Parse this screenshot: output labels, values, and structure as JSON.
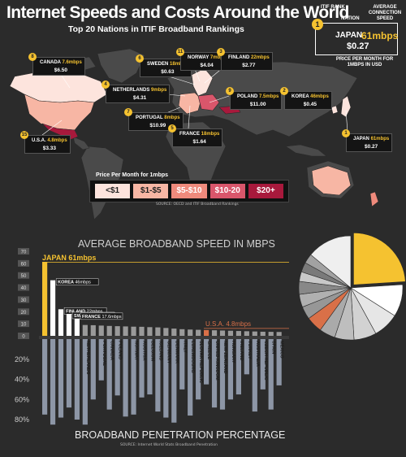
{
  "title": "Internet Speeds and Costs Around the World",
  "subtitle": "Top 20 Nations in ITIF Broadband Rankings",
  "legend_key": {
    "itif_rank_label": "ITIF RANK",
    "nation_label": "NATION",
    "speed_label": "AVERAGE CONNECTION SPEED",
    "price_label": "PRICE PER MONTH FOR 1MBPS IN USD",
    "example_rank": "1",
    "example_nation": "JAPAN",
    "example_speed": "61mbps",
    "example_cost": "$0.27"
  },
  "callouts": [
    {
      "rank": "8",
      "name": "CANADA",
      "speed": "7.6mbps",
      "cost": "$6.50"
    },
    {
      "rank": "6",
      "name": "SWEDEN",
      "speed": "18mbps",
      "cost": "$0.63"
    },
    {
      "rank": "11",
      "name": "NORWAY",
      "speed": "7mbps",
      "cost": "$4.04"
    },
    {
      "rank": "3",
      "name": "FINLAND",
      "speed": "22mbps",
      "cost": "$2.77"
    },
    {
      "rank": "4",
      "name": "NETHERLANDS",
      "speed": "9mbps",
      "cost": "$4.31"
    },
    {
      "rank": "7",
      "name": "PORTUGAL",
      "speed": "8mbps",
      "cost": "$10.99"
    },
    {
      "rank": "9",
      "name": "POLAND",
      "speed": "7.5mbps",
      "cost": "$11.00"
    },
    {
      "rank": "2",
      "name": "KOREA",
      "speed": "46mbps",
      "cost": "$0.45"
    },
    {
      "rank": "5",
      "name": "FRANCE",
      "speed": "18mbps",
      "cost": "$1.64"
    },
    {
      "rank": "15",
      "name": "U.S.A.",
      "speed": "4.8mbps",
      "cost": "$3.33"
    },
    {
      "rank": "1",
      "name": "JAPAN",
      "speed": "61mbps",
      "cost": "$0.27"
    }
  ],
  "cost_legend": {
    "title": "Price Per Month for 1mbps",
    "bins": [
      {
        "label": "<$1",
        "color": "#fde4dd"
      },
      {
        "label": "$1-$5",
        "color": "#f7b6a4"
      },
      {
        "label": "$5-$10",
        "color": "#ef8a7c"
      },
      {
        "label": "$10-20",
        "color": "#d9566b"
      },
      {
        "label": "$20+",
        "color": "#a8193c"
      }
    ],
    "source": "SOURCE: OECD and ITIF Broadband Rankings"
  },
  "speed_section_title": "AVERAGE BROADBAND SPEED IN MBPS",
  "penetration_section_title": "BROADBAND PENETRATION PERCENTAGE",
  "penetration_source": "SOURCE: Internet World Stats Broadband Penetration",
  "chart_data": [
    {
      "type": "bar",
      "title": "AVERAGE BROADBAND SPEED IN MBPS",
      "ylim": [
        0,
        70
      ],
      "yticks": [
        0,
        10,
        20,
        30,
        40,
        50,
        60,
        70
      ],
      "annotations": [
        {
          "label": "JAPAN",
          "value": "61mbps"
        },
        {
          "label": "KOREA",
          "value": "46mbps"
        },
        {
          "label": "FINLAND",
          "value": "22mbps"
        },
        {
          "label": "SWEDEN",
          "value": "18.2mbps"
        },
        {
          "label": "FRANCE",
          "value": "17.6mbps"
        },
        {
          "label": "U.S.A.",
          "value": "4.8mbps"
        }
      ],
      "colors": {
        "japan": "#f5c230",
        "top": "#ffffff",
        "usa": "#d97048",
        "other": "#9a9a9a"
      },
      "values": [
        61,
        46,
        22,
        18.2,
        17.6,
        9,
        8.8,
        8.5,
        8.2,
        8,
        7.8,
        7.6,
        7.5,
        7.2,
        7,
        6.5,
        6,
        5.5,
        5.2,
        5,
        4.8,
        4.6,
        4.4,
        4.2,
        4,
        3.8,
        3.6,
        3.4,
        3.3,
        3.2
      ]
    },
    {
      "type": "bar",
      "title": "BROADBAND PENETRATION PERCENTAGE",
      "ylim": [
        0,
        80
      ],
      "yticks_labels": [
        "20%",
        "40%",
        "60%",
        "80%"
      ],
      "categories": [
        "",
        "",
        "",
        "",
        "",
        "NETHERLANDS",
        "",
        "PORTUGAL",
        "CANADA",
        "POLAND",
        "",
        "NORWAY",
        "AUSTRIA",
        "BELGIUM",
        "ICELAND",
        "GERMANY",
        "DENMARK",
        "ITALY",
        "LUXEMBOURG",
        "SLOVAK REPUBLIC",
        "GREECE",
        "UNITED KINGDOM",
        "NEW ZEALAND",
        "HUNGARY",
        "IRELAND",
        "TURKEY",
        "AUSTRALIA",
        "CZECH REPUBLIC",
        "SPAIN",
        "MEXICO"
      ],
      "values": [
        75,
        85,
        78,
        68,
        80,
        85,
        60,
        41,
        70,
        56,
        77,
        75,
        58,
        55,
        72,
        78,
        83,
        50,
        76,
        60,
        45,
        68,
        70,
        60,
        55,
        35,
        72,
        50,
        70,
        46
      ],
      "color": "#8d96a6"
    },
    {
      "type": "pie",
      "values": [
        24,
        10,
        8,
        7,
        6,
        5,
        5,
        4,
        4,
        4,
        3,
        3,
        3,
        14
      ],
      "colors": [
        "#f5c230",
        "#ffffff",
        "#e6e6e6",
        "#d2d2d2",
        "#bebebe",
        "#aaaaaa",
        "#d97048",
        "#979797",
        "#b0b0b0",
        "#888888",
        "#c8c8c8",
        "#7a7a7a",
        "#a2a2a2",
        "#efefef"
      ]
    }
  ]
}
